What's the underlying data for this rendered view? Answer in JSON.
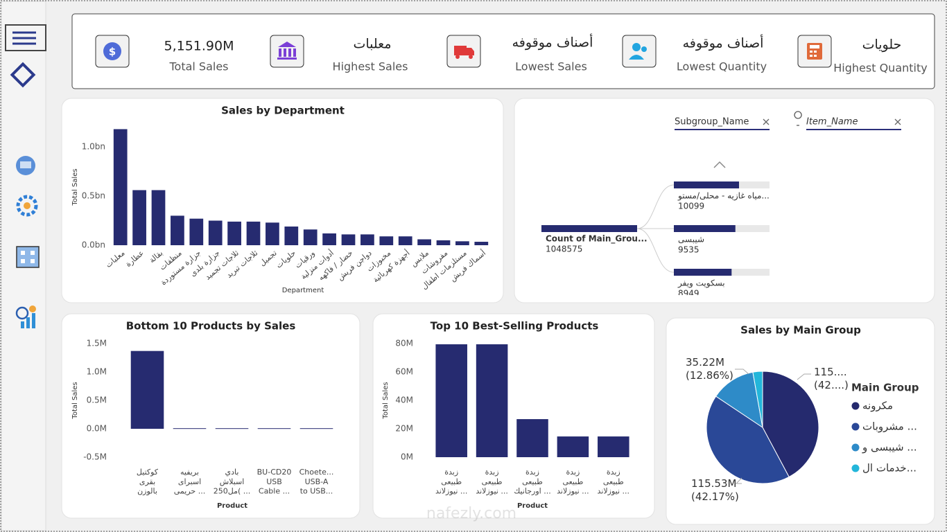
{
  "kpis": [
    {
      "value": "5,151.90M",
      "label": "Total Sales"
    },
    {
      "value": "معلبات",
      "label": "Highest Sales"
    },
    {
      "value": "أصناف موقوفه",
      "label": "Lowest Sales"
    },
    {
      "value": "أصناف موقوفه",
      "label": "Lowest Quantity"
    },
    {
      "value": "حلويات",
      "label": "Highest Quantity"
    }
  ],
  "watermark": "nafezly.com",
  "chart_data": [
    {
      "type": "bar",
      "title": "Sales by Department",
      "y_label": "Total Sales",
      "x_label": "Department",
      "categories": [
        "معلبات",
        "عطارة",
        "بقالة",
        "منظفات",
        "جزارة مستوردة",
        "جزارة بلدى",
        "ثلاجات تجميد",
        "ثلاجات تبريد",
        "تجميل",
        "حلويات",
        "ورقيات",
        "أدوات منزلية",
        "خضار / فاكهه",
        "دواجن فريش",
        "مخبوزات",
        "أجهزة كهربائية",
        "ملابس",
        "مفروشات",
        "مستلزمات اطفال",
        "أسماك فريش"
      ],
      "values": [
        1.18,
        0.56,
        0.56,
        0.3,
        0.27,
        0.25,
        0.24,
        0.24,
        0.23,
        0.19,
        0.16,
        0.12,
        0.11,
        0.11,
        0.09,
        0.09,
        0.06,
        0.05,
        0.04,
        0.035
      ],
      "color": "#262b70",
      "ylim": [
        0,
        1.2
      ],
      "yticks": [
        {
          "value": 0,
          "label": "0.0bn"
        },
        {
          "value": 0.5,
          "label": "0.5bn"
        },
        {
          "value": 1,
          "label": "1.0bn"
        }
      ],
      "grid": false
    },
    {
      "type": "decomposition",
      "filters": [
        "Subgroup_Name",
        "Item_Name"
      ],
      "root": {
        "label": "Count of Main_Grou...",
        "value": 1048575
      },
      "categories": [
        "مياه غازيه - محلى/مستو...",
        "شيبسى",
        "بسكويت ويفر"
      ],
      "values": [
        10099,
        9535,
        8949
      ],
      "color": "#262b70"
    },
    {
      "type": "bar",
      "title": "Bottom 10 Products by Sales",
      "y_label": "Total Sales",
      "x_label": "Product",
      "categories": [
        "كوكتيل\nبقرى\nبالوزن",
        "بريفيه\nاسبراى\nحريمى ...",
        "بادي\nاسبلاش\n250مل( ...",
        "BU-CD20\nUSB\nCable ...",
        "Choete...\nUSB-A\nto USB..."
      ],
      "values": [
        1.37,
        0.01,
        0.01,
        0.01,
        0.01
      ],
      "color": "#262b70",
      "ylim": [
        -0.5,
        1.55
      ],
      "yticks": [
        {
          "value": -0.5,
          "label": "-0.5M"
        },
        {
          "value": 0,
          "label": "0.0M"
        },
        {
          "value": 0.5,
          "label": "0.5M"
        },
        {
          "value": 1,
          "label": "1.0M"
        },
        {
          "value": 1.5,
          "label": "1.5M"
        }
      ],
      "grid": false
    },
    {
      "type": "bar",
      "title": "Top 10 Best-Selling Products",
      "y_label": "Total Sales",
      "x_label": "Product",
      "categories": [
        "زبدة\nطبيعى\nنيوزلاند ...",
        "زبدة\nطبيعى\nنيوزلاند ...",
        "زبدة\nطبيعى\nاورجانيك ...",
        "زبدة\nطبيعى\nنيوزلاند ...",
        "زبدة\nطبيعى\nنيوزلاند ..."
      ],
      "values": [
        79.5,
        79.5,
        26.8,
        14.6,
        14.6
      ],
      "color": "#262b70",
      "ylim": [
        0,
        84
      ],
      "yticks": [
        {
          "value": 0,
          "label": "0M"
        },
        {
          "value": 20,
          "label": "20M"
        },
        {
          "value": 40,
          "label": "40M"
        },
        {
          "value": 60,
          "label": "60M"
        },
        {
          "value": 80,
          "label": "80M"
        }
      ],
      "grid": false
    },
    {
      "type": "pie",
      "title": "Sales by Main Group",
      "legend_title": "Main Group",
      "legend": "right",
      "categories": [
        "مكرونه",
        "مشروبات ...",
        "شيبسى و ...",
        "خدمات ال..."
      ],
      "values": [
        115.6,
        115.53,
        35.22,
        7.61
      ],
      "value_labels": [
        "115....\n(42....)",
        "115.53M\n(42.17%)",
        "35.22M\n(12.86%)",
        null
      ],
      "colors": [
        "#252a6e",
        "#2a4897",
        "#2e8bc8",
        "#23b6da"
      ]
    }
  ]
}
